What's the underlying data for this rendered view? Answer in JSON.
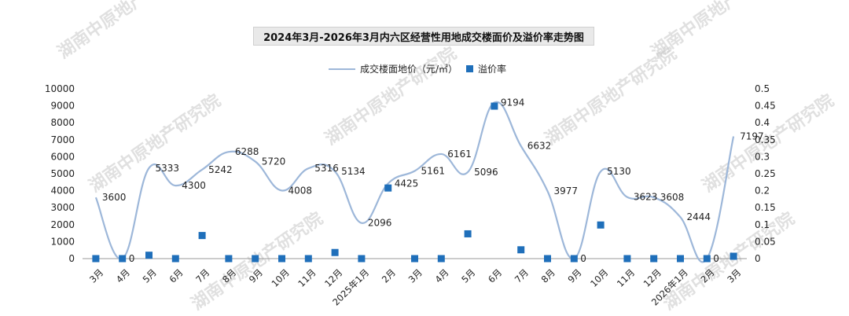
{
  "chart_data": {
    "type": "line",
    "title": "2024年3月-2026年3月内六区经营性用地成交楼面价及溢价率走势图",
    "watermark": "湖南中原地产研究院",
    "categories": [
      "3月",
      "4月",
      "5月",
      "6月",
      "7月",
      "8月",
      "9月",
      "10月",
      "11月",
      "12月",
      "2025年1月",
      "2月",
      "3月",
      "4月",
      "5月",
      "6月",
      "7月",
      "8月",
      "9月",
      "10月",
      "11月",
      "12月",
      "2026年1月",
      "2月",
      "3月"
    ],
    "series": [
      {
        "name": "成交楼面地价（元/㎡）",
        "type": "line",
        "axis": "left",
        "color": "#9db7d9",
        "values": [
          3600,
          0,
          5333,
          4300,
          5242,
          6288,
          5720,
          4008,
          5316,
          5134,
          2096,
          4425,
          5161,
          6161,
          5096,
          9194,
          6632,
          3977,
          0,
          5130,
          3623,
          3608,
          2444,
          0,
          7197
        ],
        "labels": [
          "3600",
          "0",
          "5333",
          "4300",
          "5242",
          "6288",
          "5720",
          "4008",
          "5316",
          "5134",
          "2096",
          "4425",
          "5161",
          "6161",
          "5096",
          "9194",
          "6632",
          "3977",
          "0",
          "5130",
          "3623",
          "3608",
          "2444",
          "0",
          "7197"
        ]
      },
      {
        "name": "溢价率",
        "type": "scatter",
        "axis": "right",
        "color": "#1f6fba",
        "values": [
          0,
          0,
          0.01,
          0,
          0.068,
          0,
          0,
          0,
          0,
          0.018,
          0,
          0.208,
          0,
          0,
          0.073,
          0.449,
          0.026,
          0,
          0,
          0.099,
          0,
          0,
          0,
          0,
          0.007
        ]
      }
    ],
    "y_left": {
      "min": 0,
      "max": 10000,
      "ticks": [
        "0",
        "1000",
        "2000",
        "3000",
        "4000",
        "5000",
        "6000",
        "7000",
        "8000",
        "9000",
        "10000"
      ]
    },
    "y_right": {
      "min": 0,
      "max": 0.5,
      "ticks": [
        "0",
        "0.05",
        "0.1",
        "0.15",
        "0.2",
        "0.25",
        "0.3",
        "0.35",
        "0.4",
        "0.45",
        "0.5"
      ]
    },
    "grid": false,
    "legend_position": "top-center"
  }
}
